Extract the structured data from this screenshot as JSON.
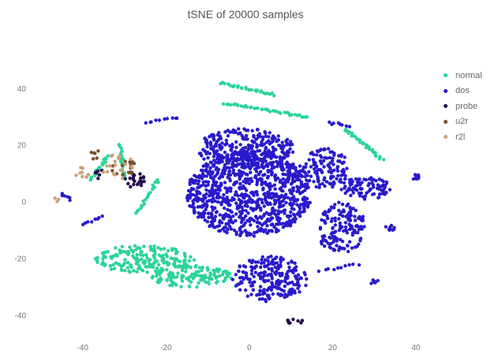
{
  "chart_data": {
    "type": "scatter",
    "title": "tSNE of 20000 samples",
    "xlabel": "",
    "ylabel": "",
    "xlim": [
      -50,
      44
    ],
    "ylim": [
      -46,
      48
    ],
    "xticks": [
      -40,
      -20,
      0,
      20,
      40
    ],
    "yticks": [
      -40,
      -20,
      0,
      20,
      40
    ],
    "grid": false,
    "legend_position": "right",
    "series": [
      {
        "name": "normal",
        "color": "#2bd39a",
        "clusters": [
          {
            "type": "line",
            "from": [
              -7,
              42
            ],
            "to": [
              6,
              38
            ],
            "n": 30
          },
          {
            "type": "line",
            "from": [
              -6,
              35
            ],
            "to": [
              14,
              30
            ],
            "n": 40
          },
          {
            "type": "line",
            "from": [
              -38,
              8
            ],
            "to": [
              -34,
              16
            ],
            "n": 20
          },
          {
            "type": "line",
            "from": [
              -27,
              -4
            ],
            "to": [
              -22,
              8
            ],
            "n": 20
          },
          {
            "type": "line",
            "from": [
              -31,
              20
            ],
            "to": [
              -30,
              8
            ],
            "n": 20
          },
          {
            "type": "line",
            "from": [
              23,
              26
            ],
            "to": [
              32,
              15
            ],
            "n": 30
          },
          {
            "type": "ellipse",
            "center": [
              -25,
              -20
            ],
            "radius": [
              12,
              5
            ],
            "n": 180
          },
          {
            "type": "ellipse",
            "center": [
              -14,
              -26
            ],
            "radius": [
              10,
              4
            ],
            "n": 120
          }
        ]
      },
      {
        "name": "dos",
        "color": "#2a1acb",
        "clusters": [
          {
            "type": "ellipse",
            "center": [
              -1,
              19
            ],
            "radius": [
              12,
              7
            ],
            "n": 300
          },
          {
            "type": "ellipse",
            "center": [
              0,
              3
            ],
            "radius": [
              15,
              15
            ],
            "n": 900
          },
          {
            "type": "ellipse",
            "center": [
              18,
              12
            ],
            "radius": [
              6,
              7
            ],
            "n": 130
          },
          {
            "type": "ellipse",
            "center": [
              28,
              5
            ],
            "radius": [
              6,
              4
            ],
            "n": 90
          },
          {
            "type": "ellipse",
            "center": [
              22,
              -9
            ],
            "radius": [
              6,
              9
            ],
            "n": 150
          },
          {
            "type": "ellipse",
            "center": [
              5,
              -27
            ],
            "radius": [
              9,
              8
            ],
            "n": 220
          },
          {
            "type": "line",
            "from": [
              -25,
              28
            ],
            "to": [
              -17,
              30
            ],
            "n": 10
          },
          {
            "type": "line",
            "from": [
              -35,
              -5
            ],
            "to": [
              -40,
              -8
            ],
            "n": 8
          },
          {
            "type": "line",
            "from": [
              -43,
              1
            ],
            "to": [
              -45,
              3
            ],
            "n": 6
          },
          {
            "type": "line",
            "from": [
              17,
              -24
            ],
            "to": [
              26,
              -22
            ],
            "n": 10
          },
          {
            "type": "line",
            "from": [
              19,
              28
            ],
            "to": [
              24,
              27
            ],
            "n": 8
          },
          {
            "type": "ellipse",
            "center": [
              40,
              9
            ],
            "radius": [
              1,
              1
            ],
            "n": 12
          },
          {
            "type": "ellipse",
            "center": [
              34,
              -9
            ],
            "radius": [
              1.5,
              1
            ],
            "n": 10
          },
          {
            "type": "ellipse",
            "center": [
              30,
              -28
            ],
            "radius": [
              1,
              1
            ],
            "n": 8
          }
        ]
      },
      {
        "name": "probe",
        "color": "#230b4f",
        "clusters": [
          {
            "type": "ellipse",
            "center": [
              -28,
              8
            ],
            "radius": [
              3,
              3
            ],
            "n": 24
          },
          {
            "type": "ellipse",
            "center": [
              11,
              -42
            ],
            "radius": [
              2,
              1
            ],
            "n": 10
          },
          {
            "type": "ellipse",
            "center": [
              -36,
              10
            ],
            "radius": [
              1,
              2
            ],
            "n": 6
          }
        ]
      },
      {
        "name": "u2r",
        "color": "#7a4e28",
        "clusters": [
          {
            "type": "ellipse",
            "center": [
              -30,
              12
            ],
            "radius": [
              3,
              3
            ],
            "n": 16
          },
          {
            "type": "ellipse",
            "center": [
              -37,
              17
            ],
            "radius": [
              1,
              2
            ],
            "n": 6
          }
        ]
      },
      {
        "name": "r2l",
        "color": "#c9a07a",
        "clusters": [
          {
            "type": "ellipse",
            "center": [
              -32,
              13
            ],
            "radius": [
              4,
              5
            ],
            "n": 20
          },
          {
            "type": "ellipse",
            "center": [
              -40,
              10
            ],
            "radius": [
              2,
              3
            ],
            "n": 8
          },
          {
            "type": "ellipse",
            "center": [
              -46,
              1
            ],
            "radius": [
              1,
              1
            ],
            "n": 3
          }
        ]
      }
    ]
  }
}
